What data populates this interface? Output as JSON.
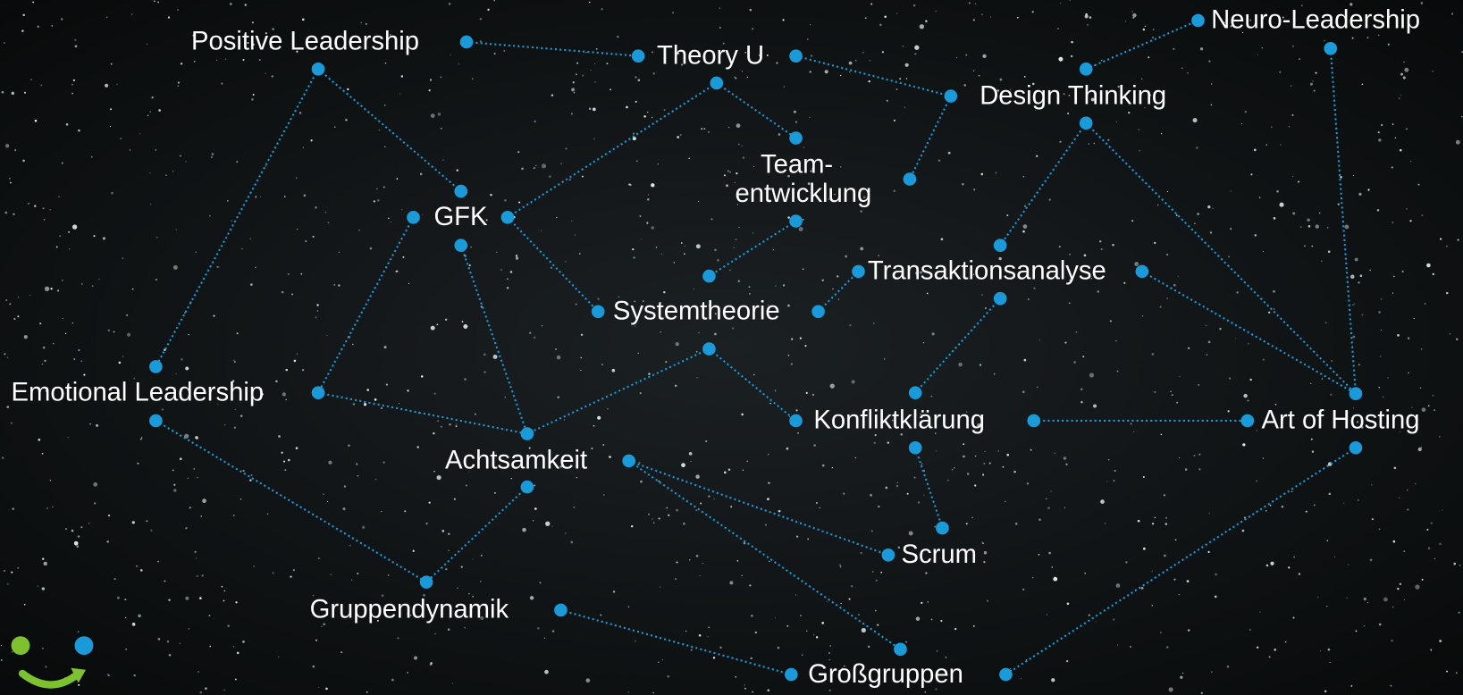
{
  "nodes": [
    {
      "label": "Positive Leadership"
    },
    {
      "label": "Theory U"
    },
    {
      "label": "Neuro-Leadership"
    },
    {
      "label": "Design Thinking"
    },
    {
      "lines": [
        "Team-",
        "entwicklung"
      ]
    },
    {
      "label": "GFK"
    },
    {
      "label": "Transaktionsanalyse"
    },
    {
      "label": "Systemtheorie"
    },
    {
      "label": "Emotional Leadership"
    },
    {
      "label": "Konfliktklärung"
    },
    {
      "label": "Art of Hosting"
    },
    {
      "label": "Achtsamkeit"
    },
    {
      "label": "Scrum"
    },
    {
      "label": "Gruppendynamik"
    },
    {
      "label": "Großgruppen"
    }
  ]
}
